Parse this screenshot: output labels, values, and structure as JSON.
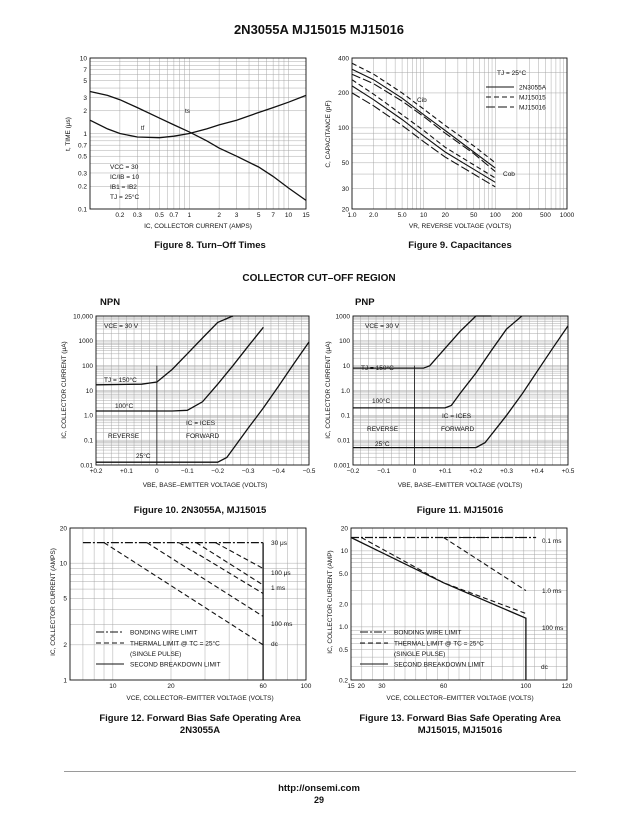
{
  "page": {
    "title": "2N3055A MJ15015 MJ15016",
    "section_title": "COLLECTOR CUT–OFF REGION",
    "npn_label": "NPN",
    "pnp_label": "PNP",
    "footer_url": "http://onsemi.com",
    "page_number": "29"
  },
  "captions": {
    "fig8": "Figure 8. Turn–Off Times",
    "fig9": "Figure 9. Capacitances",
    "fig10": "Figure 10. 2N3055A, MJ15015",
    "fig11": "Figure 11. MJ15016",
    "fig12_line1": "Figure 12. Forward Bias Safe Operating Area",
    "fig12_line2": "2N3055A",
    "fig13_line1": "Figure 13. Forward Bias Safe Operating Area",
    "fig13_line2": "MJ15015, MJ15016"
  },
  "colors": {
    "ink": "#111111",
    "grid": "#a0a0a0",
    "background": "#ffffff"
  },
  "chart_data": [
    {
      "id": "fig8",
      "type": "line",
      "xscale": "log",
      "yscale": "log",
      "xlim": [
        0.1,
        15
      ],
      "ylim": [
        0.1,
        10
      ],
      "xticks": [
        0.2,
        0.3,
        0.5,
        0.7,
        1,
        2,
        3,
        5,
        7,
        10,
        15
      ],
      "xtick_labels": [
        "0.2",
        "0.3",
        "0.5",
        "0.7",
        "1",
        "2",
        "3",
        "5",
        "7",
        "10",
        "15"
      ],
      "yticks": [
        0.1,
        0.2,
        0.3,
        0.5,
        0.7,
        1,
        2,
        3,
        5,
        7,
        10
      ],
      "ytick_labels": [
        "0.1",
        "0.2",
        "0.3",
        "0.5",
        "0.7",
        "1",
        "2",
        "3",
        "5",
        "7",
        "10"
      ],
      "xlabel": "I_C, COLLECTOR CURRENT (AMPS)",
      "ylabel": "t, TIME (μs)",
      "grid": true,
      "series": [
        {
          "name": "t_s",
          "style": "solid",
          "x": [
            0.1,
            0.15,
            0.2,
            0.3,
            0.5,
            0.7,
            1,
            1.5,
            2,
            3,
            5,
            7,
            10,
            15
          ],
          "y": [
            3.6,
            3.2,
            2.8,
            2.2,
            1.6,
            1.3,
            1.05,
            0.8,
            0.64,
            0.5,
            0.36,
            0.27,
            0.19,
            0.13
          ]
        },
        {
          "name": "t_f",
          "style": "solid",
          "x": [
            0.1,
            0.15,
            0.2,
            0.3,
            0.5,
            0.7,
            1,
            1.5,
            2,
            3,
            5,
            7,
            10,
            15
          ],
          "y": [
            1.5,
            1.15,
            1.0,
            0.9,
            0.88,
            0.92,
            1.0,
            1.15,
            1.3,
            1.5,
            1.9,
            2.2,
            2.6,
            3.2
          ]
        }
      ],
      "annotations": [
        "V_CC = 30",
        "I_C/I_B = 10",
        "I_B1 = I_B2",
        "T_J = 25°C"
      ]
    },
    {
      "id": "fig9",
      "type": "line",
      "xscale": "log",
      "yscale": "log",
      "xlim": [
        1,
        1000
      ],
      "ylim": [
        20,
        400
      ],
      "xticks": [
        1,
        2,
        5,
        10,
        20,
        50,
        100,
        200,
        500,
        1000
      ],
      "xtick_labels": [
        "1.0",
        "2.0",
        "5.0",
        "10",
        "20",
        "50",
        "100",
        "200",
        "500",
        "1000"
      ],
      "yticks": [
        20,
        30,
        50,
        100,
        200,
        400
      ],
      "ytick_labels": [
        "20",
        "30",
        "50",
        "100",
        "200",
        "400"
      ],
      "xlabel": "V_R, REVERSE VOLTAGE (VOLTS)",
      "ylabel": "C, CAPACITANCE (pF)",
      "grid": true,
      "legend_title": "T_J = 25°C",
      "legend_position": "top-right",
      "series": [
        {
          "name": "2N3055A",
          "curve": "C_ib",
          "style": "solid",
          "x": [
            1,
            2,
            5,
            10,
            20,
            50,
            100
          ],
          "y": [
            320,
            260,
            180,
            130,
            95,
            62,
            45
          ]
        },
        {
          "name": "MJ15015",
          "curve": "C_ib",
          "style": "dashed",
          "x": [
            1,
            2,
            5,
            10,
            20,
            50,
            100
          ],
          "y": [
            360,
            290,
            200,
            145,
            105,
            70,
            50
          ]
        },
        {
          "name": "MJ15016",
          "curve": "C_ib",
          "style": "long-dash",
          "x": [
            1,
            2,
            5,
            10,
            20,
            50,
            100
          ],
          "y": [
            290,
            240,
            170,
            125,
            90,
            60,
            42
          ]
        },
        {
          "name": "2N3055A",
          "curve": "C_ob",
          "style": "solid",
          "x": [
            1,
            2,
            5,
            10,
            20,
            50,
            100
          ],
          "y": [
            230,
            175,
            118,
            85,
            62,
            44,
            34
          ]
        },
        {
          "name": "MJ15015",
          "curve": "C_ob",
          "style": "dashed",
          "x": [
            1,
            2,
            5,
            10,
            20,
            50,
            100
          ],
          "y": [
            260,
            195,
            130,
            95,
            68,
            48,
            37
          ]
        },
        {
          "name": "MJ15016",
          "curve": "C_ob",
          "style": "long-dash",
          "x": [
            1,
            2,
            5,
            10,
            20,
            50,
            100
          ],
          "y": [
            200,
            155,
            105,
            76,
            56,
            40,
            31
          ]
        }
      ],
      "annotations": [
        "C_ib",
        "C_ob"
      ]
    },
    {
      "id": "fig10",
      "type": "line",
      "xscale": "linear",
      "yscale": "log",
      "x_reversed": true,
      "xlim": [
        0.2,
        -0.5
      ],
      "ylim": [
        0.01,
        10000
      ],
      "xticks": [
        0.2,
        0.1,
        0,
        -0.1,
        -0.2,
        -0.3,
        -0.4,
        -0.5
      ],
      "xtick_labels": [
        "+0.2",
        "+0.1",
        "0",
        "−0.1",
        "−0.2",
        "−0.3",
        "−0.4",
        "−0.5"
      ],
      "yticks": [
        0.01,
        0.1,
        1,
        10,
        100,
        1000,
        10000
      ],
      "ytick_labels": [
        "0.01",
        "0.1",
        "1.0",
        "10",
        "100",
        "1000",
        "10,000"
      ],
      "xlabel": "V_BE, BASE–EMITTER VOLTAGE (VOLTS)",
      "ylabel": "I_C, COLLECTOR CURRENT (μA)",
      "grid": true,
      "series": [
        {
          "name": "150°C",
          "x": [
            0.2,
            0.05,
            0,
            -0.05,
            -0.1,
            -0.15,
            -0.2,
            -0.25
          ],
          "y": [
            17,
            18,
            22,
            70,
            300,
            1300,
            5500,
            10000
          ]
        },
        {
          "name": "100°C",
          "x": [
            0.2,
            -0.05,
            -0.1,
            -0.15,
            -0.2,
            -0.25,
            -0.3,
            -0.35
          ],
          "y": [
            1.5,
            1.5,
            1.6,
            3.5,
            18,
            100,
            600,
            3500
          ]
        },
        {
          "name": "25°C",
          "x": [
            0.2,
            -0.2,
            -0.23,
            -0.3,
            -0.35,
            -0.4,
            -0.45,
            -0.5
          ],
          "y": [
            0.013,
            0.013,
            0.02,
            0.3,
            2,
            15,
            120,
            900
          ]
        }
      ],
      "annotations": [
        "V_CE = 30 V",
        "T_J = 150°C",
        "100°C",
        "25°C",
        "I_C = I_CES",
        "REVERSE",
        "FORWARD"
      ]
    },
    {
      "id": "fig11",
      "type": "line",
      "xscale": "linear",
      "yscale": "log",
      "xlim": [
        -0.2,
        0.5
      ],
      "ylim": [
        0.001,
        1000
      ],
      "xticks": [
        -0.2,
        -0.1,
        0,
        0.1,
        0.2,
        0.3,
        0.4,
        0.5
      ],
      "xtick_labels": [
        "−0.2",
        "−0.1",
        "0",
        "+0.1",
        "+0.2",
        "+0.3",
        "+0.4",
        "+0.5"
      ],
      "yticks": [
        0.001,
        0.01,
        0.1,
        1,
        10,
        100,
        1000
      ],
      "ytick_labels": [
        "0.001",
        "0.01",
        "0.1",
        "1.0",
        "10",
        "100",
        "1000"
      ],
      "xlabel": "V_BE, BASE–EMITTER VOLTAGE (VOLTS)",
      "ylabel": "I_C, COLLECTOR CURRENT (μA)",
      "grid": true,
      "series": [
        {
          "name": "150°C",
          "x": [
            -0.2,
            0.03,
            0.05,
            0.1,
            0.15,
            0.2,
            0.25
          ],
          "y": [
            8,
            8,
            10,
            50,
            250,
            1000,
            1000
          ]
        },
        {
          "name": "100°C",
          "x": [
            -0.2,
            0.1,
            0.12,
            0.15,
            0.2,
            0.25,
            0.3,
            0.35
          ],
          "y": [
            0.2,
            0.2,
            0.25,
            0.8,
            5,
            40,
            300,
            1000
          ]
        },
        {
          "name": "25°C",
          "x": [
            -0.2,
            0.2,
            0.23,
            0.3,
            0.35,
            0.4,
            0.45,
            0.5
          ],
          "y": [
            0.005,
            0.005,
            0.008,
            0.1,
            0.7,
            6,
            50,
            400
          ]
        }
      ],
      "annotations": [
        "V_CE = 30 V",
        "T_J = 150°C",
        "100°C",
        "25°C",
        "I_C = I_CES",
        "REVERSE",
        "FORWARD"
      ]
    },
    {
      "id": "fig12",
      "type": "line",
      "xscale": "log",
      "yscale": "log",
      "xlim": [
        6,
        100
      ],
      "ylim": [
        1,
        20
      ],
      "xticks": [
        10,
        20,
        60,
        100
      ],
      "xtick_labels": [
        "10",
        "20",
        "60",
        "100"
      ],
      "yticks": [
        1,
        2,
        5,
        10,
        20
      ],
      "ytick_labels": [
        "1",
        "2",
        "5",
        "10",
        "20"
      ],
      "xlabel": "V_CE, COLLECTOR–EMITTER VOLTAGE (VOLTS)",
      "ylabel": "I_C, COLLECTOR CURRENT (AMPS)",
      "grid": true,
      "legend_position": "bottom-left",
      "series": [
        {
          "name": "BONDING WIRE LIMIT",
          "style": "dash-dot",
          "x": [
            7,
            60
          ],
          "y": [
            15,
            15
          ]
        },
        {
          "name": "THERMAL LIMIT @ T_C = 25°C (SINGLE PULSE)",
          "style": "dashed",
          "curves": [
            {
              "label": "30 μs",
              "x": [
                34,
                60
              ],
              "y": [
                15,
                9
              ]
            },
            {
              "label": "100 μs",
              "x": [
                27,
                60
              ],
              "y": [
                15,
                6.5
              ]
            },
            {
              "label": "1 ms",
              "x": [
                22,
                60
              ],
              "y": [
                15,
                5.5
              ]
            },
            {
              "label": "100 ms",
              "x": [
                15,
                60
              ],
              "y": [
                15,
                3.5
              ]
            },
            {
              "label": "dc",
              "x": [
                9,
                60
              ],
              "y": [
                15,
                2
              ]
            }
          ]
        },
        {
          "name": "SECOND BREAKDOWN LIMIT",
          "style": "solid",
          "x": [
            60,
            60
          ],
          "y": [
            15,
            1
          ]
        }
      ],
      "annotations": [
        "30 μs",
        "100 μs",
        "1 ms",
        "100 ms",
        "dc"
      ]
    },
    {
      "id": "fig13",
      "type": "line",
      "xscale": "linear",
      "yscale": "log",
      "xlim": [
        15,
        120
      ],
      "ylim": [
        0.2,
        20
      ],
      "xticks": [
        15,
        20,
        30,
        60,
        100,
        120
      ],
      "xtick_labels": [
        "15",
        "20",
        "30",
        "60",
        "100",
        "120"
      ],
      "yticks": [
        0.2,
        0.5,
        1,
        2,
        5,
        10,
        20
      ],
      "ytick_labels": [
        "0.2",
        "0.5",
        "1.0",
        "2.0",
        "5.0",
        "10",
        "20"
      ],
      "xlabel": "V_CE, COLLECTOR–EMITTER VOLTAGE (VOLTS)",
      "ylabel": "I_C, COLLECTOR CURRENT (AMP)",
      "grid": true,
      "legend_position": "bottom-left",
      "series": [
        {
          "name": "BONDING WIRE LIMIT",
          "style": "dash-dot",
          "x": [
            15,
            105
          ],
          "y": [
            15,
            15
          ]
        },
        {
          "name": "THERMAL LIMIT @ T_C = 25°C (SINGLE PULSE)",
          "style": "dashed",
          "curves": [
            {
              "label": "0.1 ms",
              "x": [
                60,
                100
              ],
              "y": [
                15,
                15
              ]
            },
            {
              "label": "1.0 ms",
              "x": [
                60,
                100
              ],
              "y": [
                15,
                3.0
              ]
            },
            {
              "label": "100 ms",
              "x": [
                20,
                60,
                100
              ],
              "y": [
                15,
                3.8,
                1.5
              ]
            }
          ]
        },
        {
          "name": "SECOND BREAKDOWN LIMIT",
          "style": "solid",
          "x": [
            15,
            60,
            100,
            100
          ],
          "y": [
            15,
            3.8,
            1.3,
            0.2
          ]
        }
      ],
      "annotations": [
        "0.1 ms",
        "1.0 ms",
        "100 ms",
        "dc"
      ]
    }
  ]
}
